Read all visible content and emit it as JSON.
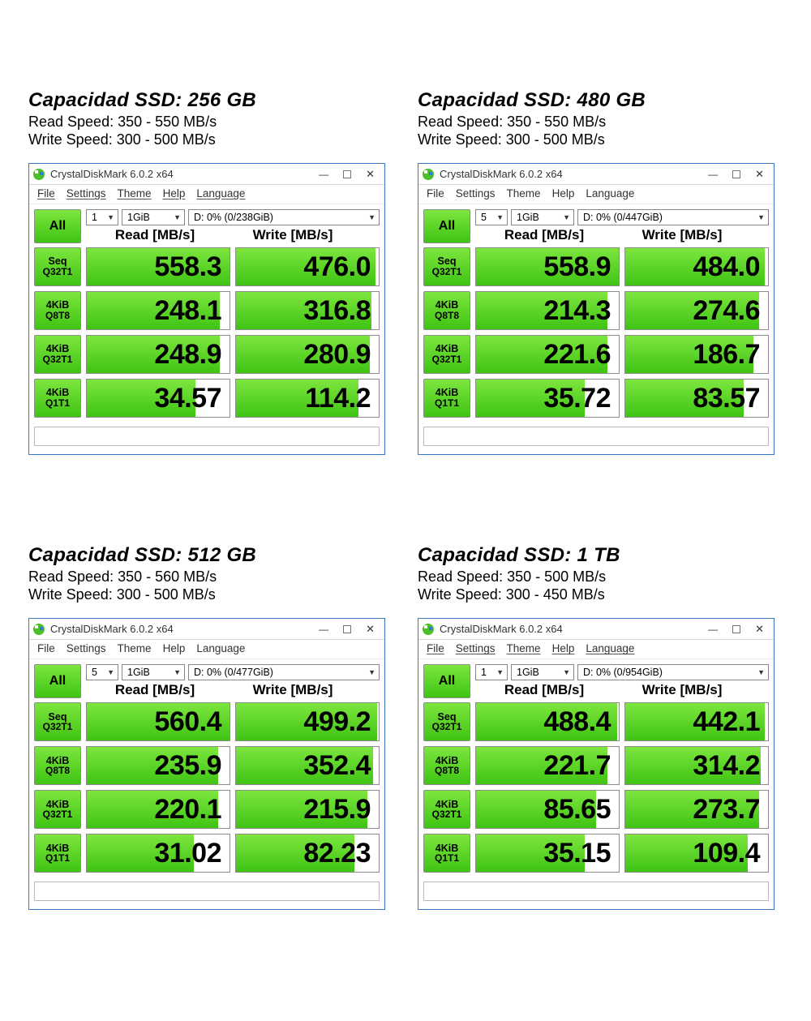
{
  "colors": {
    "window_border": "#3a78c5",
    "green_top": "#7de63e",
    "green_bottom": "#3fc413",
    "cell_border": "#8c8c8c",
    "text": "#000000",
    "bg": "#ffffff"
  },
  "app_title": "CrystalDiskMark 6.0.2 x64",
  "menu": [
    "File",
    "Settings",
    "Theme",
    "Help",
    "Language"
  ],
  "column_headers": {
    "read": "Read [MB/s]",
    "write": "Write [MB/s]"
  },
  "all_button_label": "All",
  "row_labels": [
    {
      "l1": "Seq",
      "l2": "Q32T1"
    },
    {
      "l1": "4KiB",
      "l2": "Q8T8"
    },
    {
      "l1": "4KiB",
      "l2": "Q32T1"
    },
    {
      "l1": "4KiB",
      "l2": "Q1T1"
    }
  ],
  "panels": [
    {
      "title": "Capacidad SSD: 256 GB",
      "read_speed": "Read Speed: 350 - 550 MB/s",
      "write_speed": "Write Speed: 300 - 500 MB/s",
      "menu_underlined": true,
      "selects": {
        "runs": "1",
        "size": "1GiB",
        "drive": "D: 0% (0/238GiB)"
      },
      "rows": [
        {
          "read": "558.3",
          "read_fill": 100,
          "write": "476.0",
          "write_fill": 98
        },
        {
          "read": "248.1",
          "read_fill": 93,
          "write": "316.8",
          "write_fill": 95
        },
        {
          "read": "248.9",
          "read_fill": 93,
          "write": "280.9",
          "write_fill": 94
        },
        {
          "read": "34.57",
          "read_fill": 76,
          "write": "114.2",
          "write_fill": 86
        }
      ]
    },
    {
      "title": "Capacidad SSD: 480 GB",
      "read_speed": "Read Speed: 350 - 550 MB/s",
      "write_speed": "Write Speed: 300 - 500 MB/s",
      "menu_underlined": false,
      "selects": {
        "runs": "5",
        "size": "1GiB",
        "drive": "D: 0% (0/447GiB)"
      },
      "rows": [
        {
          "read": "558.9",
          "read_fill": 100,
          "write": "484.0",
          "write_fill": 98
        },
        {
          "read": "214.3",
          "read_fill": 92,
          "write": "274.6",
          "write_fill": 94
        },
        {
          "read": "221.6",
          "read_fill": 92,
          "write": "186.7",
          "write_fill": 90
        },
        {
          "read": "35.72",
          "read_fill": 76,
          "write": "83.57",
          "write_fill": 83
        }
      ]
    },
    {
      "title": "Capacidad SSD: 512 GB",
      "read_speed": "Read Speed: 350 - 560 MB/s",
      "write_speed": "Write Speed: 300 - 500 MB/s",
      "menu_underlined": false,
      "selects": {
        "runs": "5",
        "size": "1GiB",
        "drive": "D: 0% (0/477GiB)"
      },
      "rows": [
        {
          "read": "560.4",
          "read_fill": 100,
          "write": "499.2",
          "write_fill": 99
        },
        {
          "read": "235.9",
          "read_fill": 92,
          "write": "352.4",
          "write_fill": 96
        },
        {
          "read": "220.1",
          "read_fill": 92,
          "write": "215.9",
          "write_fill": 92
        },
        {
          "read": "31.02",
          "read_fill": 75,
          "write": "82.23",
          "write_fill": 83
        }
      ]
    },
    {
      "title": "Capacidad SSD: 1 TB",
      "read_speed": "Read Speed: 350 - 500 MB/s",
      "write_speed": "Write Speed: 300 - 450 MB/s",
      "menu_underlined": true,
      "selects": {
        "runs": "1",
        "size": "1GiB",
        "drive": "D: 0% (0/954GiB)"
      },
      "rows": [
        {
          "read": "488.4",
          "read_fill": 99,
          "write": "442.1",
          "write_fill": 98
        },
        {
          "read": "221.7",
          "read_fill": 92,
          "write": "314.2",
          "write_fill": 95
        },
        {
          "read": "85.65",
          "read_fill": 84,
          "write": "273.7",
          "write_fill": 94
        },
        {
          "read": "35.15",
          "read_fill": 76,
          "write": "109.4",
          "write_fill": 86
        }
      ]
    }
  ]
}
